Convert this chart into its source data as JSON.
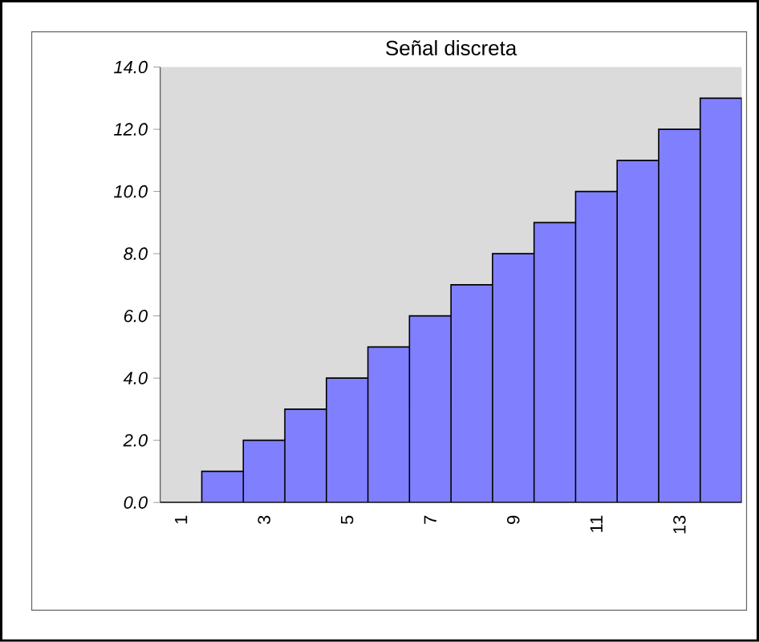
{
  "chart_data": {
    "type": "bar",
    "title": "Señal discreta",
    "categories": [
      "1",
      null,
      "3",
      null,
      "5",
      null,
      "7",
      null,
      "9",
      null,
      "11",
      null,
      "13",
      null
    ],
    "values": [
      0,
      1,
      2,
      3,
      4,
      5,
      6,
      7,
      8,
      9,
      10,
      11,
      12,
      13
    ],
    "color": "#8080ff",
    "ylim": [
      0,
      14
    ],
    "yticks": [
      {
        "value": 0,
        "label": "0.0"
      },
      {
        "value": 2,
        "label": "2.0"
      },
      {
        "value": 4,
        "label": "4.0"
      },
      {
        "value": 6,
        "label": "6.0"
      },
      {
        "value": 8,
        "label": "8.0"
      },
      {
        "value": 10,
        "label": "10.0"
      },
      {
        "value": 12,
        "label": "12.0"
      },
      {
        "value": 14,
        "label": "14.0"
      }
    ]
  }
}
